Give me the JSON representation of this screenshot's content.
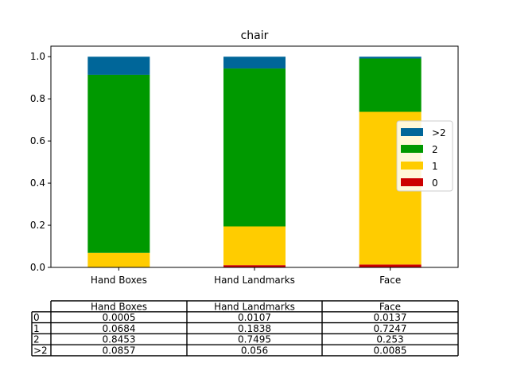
{
  "chart_data": {
    "type": "bar",
    "stacked": true,
    "title": "chair",
    "categories": [
      "Hand Boxes",
      "Hand Landmarks",
      "Face"
    ],
    "series": [
      {
        "name": "0",
        "color": "#cc0000",
        "values": [
          0.0005,
          0.0107,
          0.0137
        ]
      },
      {
        "name": "1",
        "color": "#ffcc00",
        "values": [
          0.0684,
          0.1838,
          0.7247
        ]
      },
      {
        "name": "2",
        "color": "#009900",
        "values": [
          0.8453,
          0.7495,
          0.253
        ]
      },
      {
        "name": ">2",
        "color": "#006699",
        "values": [
          0.0857,
          0.056,
          0.0085
        ]
      }
    ],
    "ylim": [
      0,
      1.05
    ],
    "yticks": [
      "0.0",
      "0.2",
      "0.4",
      "0.6",
      "0.8",
      "1.0"
    ],
    "grid": false,
    "legend_placement": "right",
    "legend_order": [
      ">2",
      "2",
      "1",
      "0"
    ],
    "table": {
      "col_labels": [
        "Hand Boxes",
        "Hand Landmarks",
        "Face"
      ],
      "row_labels": [
        "0",
        "1",
        "2",
        ">2"
      ],
      "cells": [
        [
          "0.0005",
          "0.0107",
          "0.0137"
        ],
        [
          "0.0684",
          "0.1838",
          "0.7247"
        ],
        [
          "0.8453",
          "0.7495",
          "0.253"
        ],
        [
          "0.0857",
          "0.056",
          "0.0085"
        ]
      ]
    }
  }
}
